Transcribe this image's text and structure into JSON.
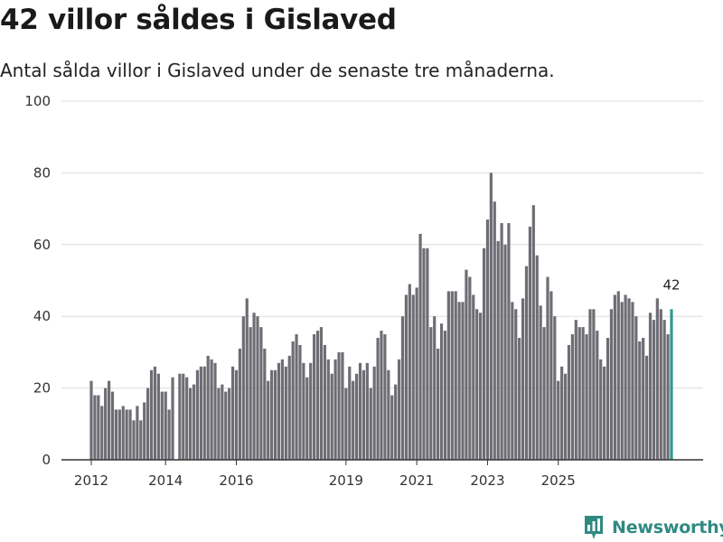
{
  "title": "42 villor såldes i Gislaved",
  "subtitle": "Antal sålda villor i Gislaved under de senaste tre månaderna.",
  "logo": {
    "text": "Newsworthy",
    "icon": "chart-logo-icon"
  },
  "colors": {
    "bar": "#6e6d74",
    "highlight": "#2a9d8f",
    "grid": "#dcdcdc",
    "axis": "#333333"
  },
  "chart_data": {
    "type": "bar",
    "title": "42 villor såldes i Gislaved",
    "xlabel": "",
    "ylabel": "",
    "ylim": [
      0,
      100
    ],
    "yticks": [
      0,
      20,
      40,
      60,
      80,
      100
    ],
    "xticks": [
      {
        "label": "2012",
        "index": 0
      },
      {
        "label": "2014",
        "index": 21
      },
      {
        "label": "2016",
        "index": 41
      },
      {
        "label": "2019",
        "index": 72
      },
      {
        "label": "2021",
        "index": 92
      },
      {
        "label": "2023",
        "index": 112
      },
      {
        "label": "2025",
        "index": 132
      }
    ],
    "series_name": "Antal sålda villor",
    "highlight_label": "42",
    "values": [
      22,
      18,
      18,
      15,
      20,
      22,
      19,
      14,
      14,
      15,
      14,
      14,
      11,
      15,
      11,
      16,
      20,
      25,
      26,
      24,
      19,
      19,
      14,
      23,
      0,
      24,
      24,
      23,
      20,
      21,
      25,
      26,
      26,
      29,
      28,
      27,
      20,
      21,
      19,
      20,
      26,
      25,
      31,
      40,
      45,
      37,
      41,
      40,
      37,
      31,
      22,
      25,
      25,
      27,
      28,
      26,
      29,
      33,
      35,
      32,
      27,
      23,
      27,
      35,
      36,
      37,
      32,
      28,
      24,
      28,
      30,
      30,
      20,
      26,
      22,
      24,
      27,
      25,
      27,
      20,
      26,
      34,
      36,
      35,
      25,
      18,
      21,
      28,
      40,
      46,
      49,
      46,
      48,
      63,
      59,
      59,
      37,
      40,
      31,
      38,
      36,
      47,
      47,
      47,
      44,
      44,
      53,
      51,
      46,
      42,
      41,
      59,
      67,
      80,
      72,
      61,
      66,
      60,
      66,
      44,
      42,
      34,
      45,
      54,
      65,
      71,
      57,
      43,
      37,
      51,
      47,
      40,
      22,
      26,
      24,
      32,
      35,
      39,
      37,
      37,
      35,
      42,
      42,
      36,
      28,
      26,
      34,
      42,
      46,
      47,
      44,
      46,
      45,
      44,
      40,
      33,
      34,
      29,
      41,
      39,
      45,
      42,
      39,
      35,
      42
    ]
  }
}
